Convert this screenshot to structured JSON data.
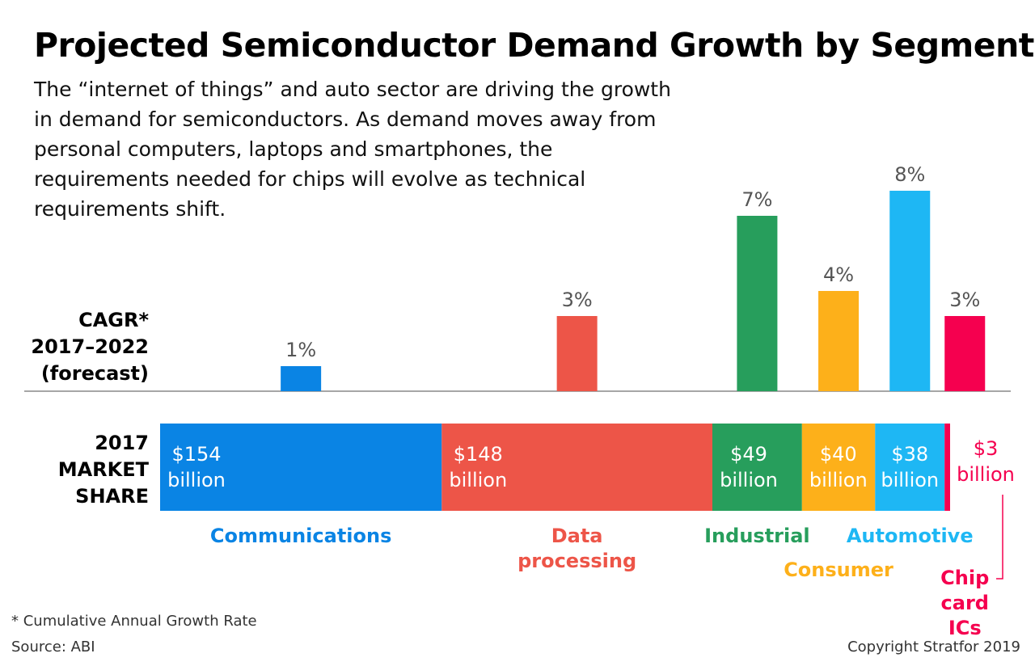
{
  "chart_data": [
    {
      "type": "bar",
      "title": "Projected Semiconductor Demand Growth by Segment",
      "subtitle": "The “internet of things” and auto sector are driving the growth in demand for semiconductors. As demand moves away from personal computers, laptops and smartphones, the requirements needed for chips will evolve as technical requirements shift.",
      "ylabel": "CAGR* 2017–2022 (forecast)",
      "categories": [
        "Communications",
        "Data processing",
        "Industrial",
        "Consumer",
        "Automotive",
        "Chip card ICs"
      ],
      "colors": [
        "#0a84e4",
        "#ed5548",
        "#279e5c",
        "#fdb01a",
        "#1eb7f4",
        "#f5004f"
      ],
      "values": [
        1,
        3,
        7,
        4,
        8,
        3
      ],
      "value_labels": [
        "1%",
        "3%",
        "7%",
        "4%",
        "8%",
        "3%"
      ],
      "footnote": "* Cumulative Annual Growth Rate",
      "source": "Source: ABI",
      "copyright": "Copyright Stratfor 2019"
    },
    {
      "type": "stacked-bar",
      "label": "2017 MARKET SHARE",
      "values": [
        154,
        148,
        49,
        40,
        38,
        3
      ],
      "value_labels": [
        "$154 billion",
        "$148 billion",
        "$49 billion",
        "$40 billion",
        "$38 billion",
        "$3 billion"
      ]
    }
  ]
}
